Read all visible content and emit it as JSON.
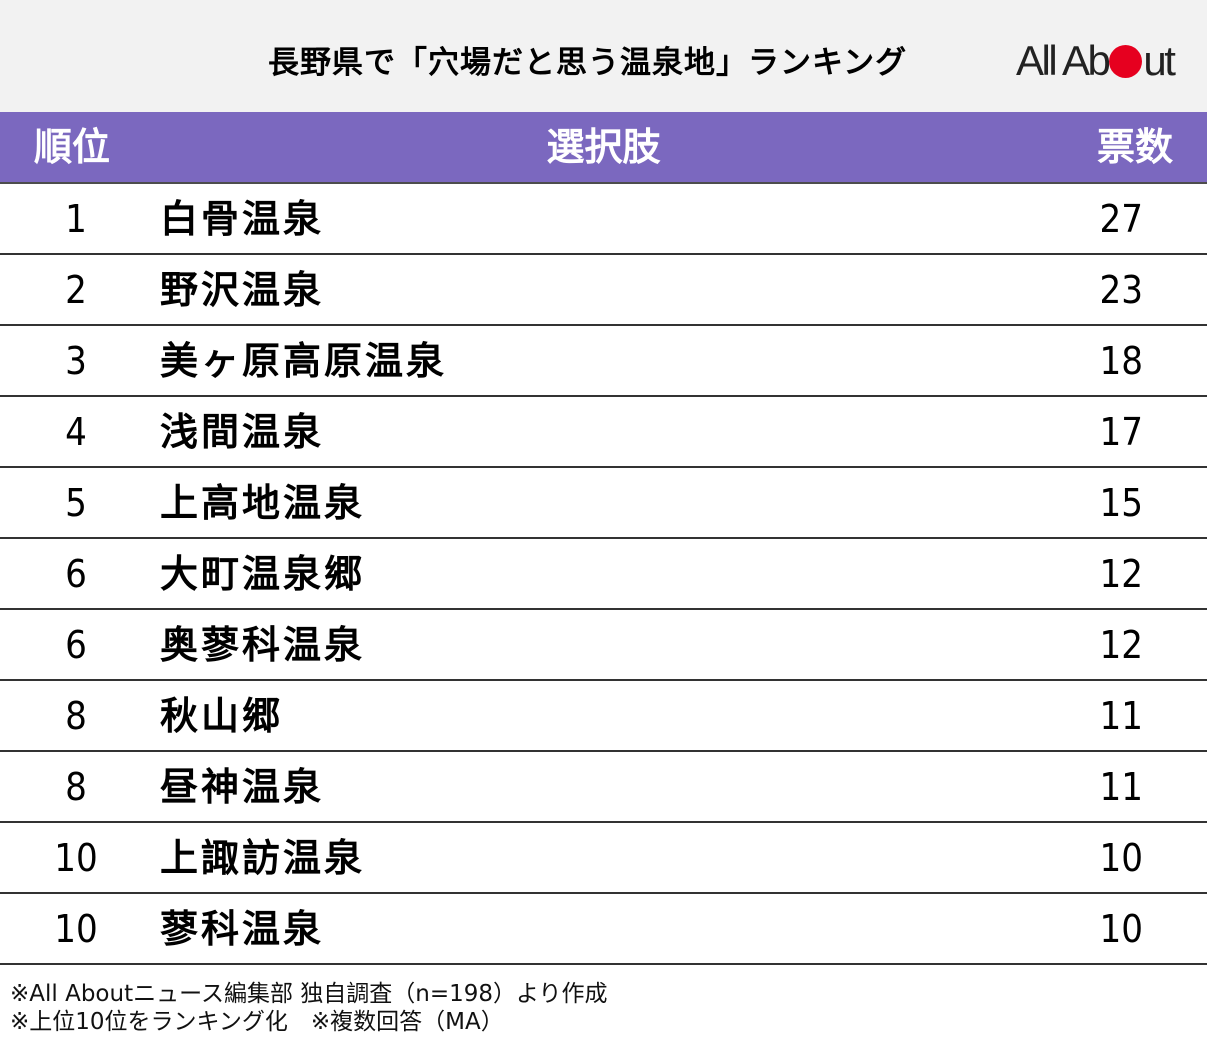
{
  "header": {
    "title": "長野県で「穴場だと思う温泉地」ランキング",
    "logo_part1": "All Ab",
    "logo_part2": "ut",
    "logo_dot_color": "#e6001f"
  },
  "colors": {
    "header_bg": "#f2f2f2",
    "table_header_bg": "#7b68bf"
  },
  "table": {
    "columns": {
      "rank": "順位",
      "option": "選択肢",
      "votes": "票数"
    }
  },
  "chart_data": {
    "type": "table",
    "title": "長野県で「穴場だと思う温泉地」ランキング",
    "columns": [
      "順位",
      "選択肢",
      "票数"
    ],
    "rows": [
      {
        "rank": "1",
        "option": "白骨温泉",
        "votes": 27
      },
      {
        "rank": "2",
        "option": "野沢温泉",
        "votes": 23
      },
      {
        "rank": "3",
        "option": "美ヶ原高原温泉",
        "votes": 18
      },
      {
        "rank": "4",
        "option": "浅間温泉",
        "votes": 17
      },
      {
        "rank": "5",
        "option": "上高地温泉",
        "votes": 15
      },
      {
        "rank": "6",
        "option": "大町温泉郷",
        "votes": 12
      },
      {
        "rank": "6",
        "option": "奥蓼科温泉",
        "votes": 12
      },
      {
        "rank": "8",
        "option": "秋山郷",
        "votes": 11
      },
      {
        "rank": "8",
        "option": "昼神温泉",
        "votes": 11
      },
      {
        "rank": "10",
        "option": "上諏訪温泉",
        "votes": 10
      },
      {
        "rank": "10",
        "option": "蓼科温泉",
        "votes": 10
      }
    ]
  },
  "footer": {
    "note1": "※All Aboutニュース編集部 独自調査（n=198）より作成",
    "note2": "※上位10位をランキング化　※複数回答（MA）"
  }
}
